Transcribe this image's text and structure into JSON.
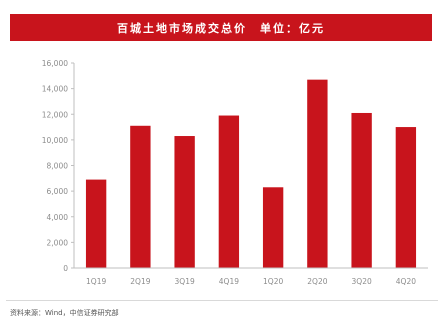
{
  "colors": {
    "bar": "#c8141c",
    "title_bg": "#c8141c",
    "axis": "#bfbfbf",
    "tick_text": "#8c8c8c"
  },
  "source_note": "资料来源：Wind，中信证券研究部",
  "chart_data": {
    "type": "bar",
    "title": "百城土地市场成交总价　单位：亿元",
    "categories": [
      "1Q19",
      "2Q19",
      "3Q19",
      "4Q19",
      "1Q20",
      "2Q20",
      "3Q20",
      "4Q20"
    ],
    "values": [
      6900,
      11100,
      10300,
      11900,
      6300,
      14700,
      12100,
      11000
    ],
    "ylim": [
      0,
      16000
    ],
    "yticks": [
      "0",
      "2,000",
      "4,000",
      "6,000",
      "8,000",
      "10,000",
      "12,000",
      "14,000",
      "16,000"
    ],
    "ytick_values": [
      0,
      2000,
      4000,
      6000,
      8000,
      10000,
      12000,
      14000,
      16000
    ],
    "grid": false,
    "legend": "none"
  }
}
